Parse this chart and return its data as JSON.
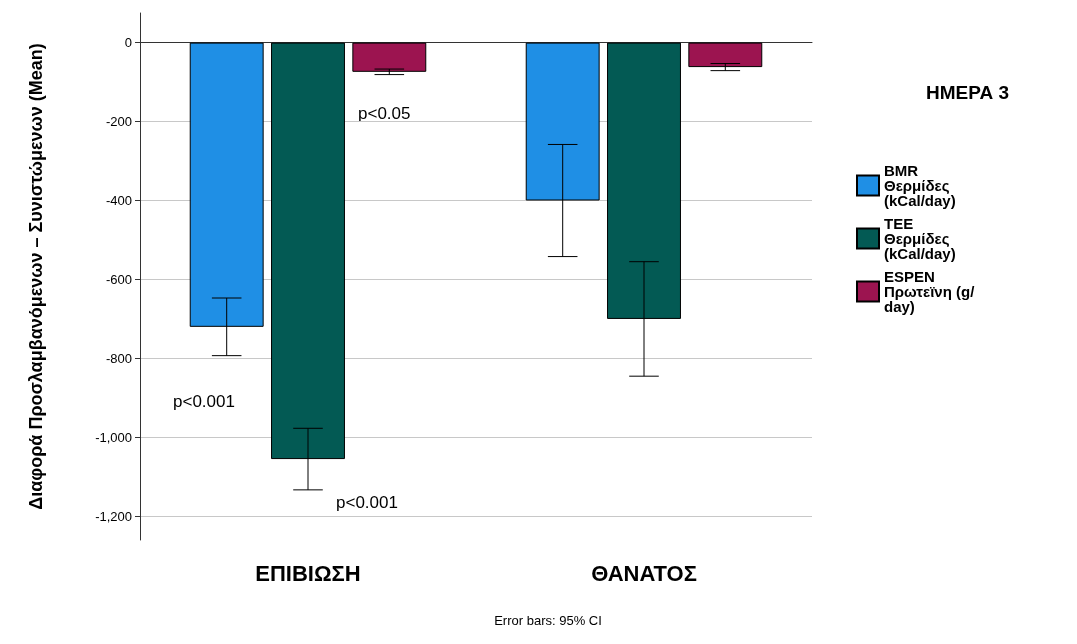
{
  "chart_data": {
    "type": "bar",
    "ylabel": "Διαφορά Προσλαμβανόμενων – Συνιστώμενων (Mean)",
    "legend_title": "ΗΜΕΡΑ 3",
    "categories": [
      "ΕΠΙΒΙΩΣΗ",
      "ΘΑΝΑΤΟΣ"
    ],
    "series": [
      {
        "name": "BMR Θερμίδες (kCal/day)",
        "color": "#1f8fe5",
        "values": [
          -720,
          -400
        ],
        "errors": [
          73,
          142
        ]
      },
      {
        "name": "TEE Θερμίδες (kCal/day)",
        "color": "#035a54",
        "values": [
          -1055,
          -700
        ],
        "errors": [
          78,
          145
        ]
      },
      {
        "name": "ESPEN Πρωτεϊνη (g/day)",
        "color": "#9c1450",
        "values": [
          -74,
          -62
        ],
        "errors": [
          7,
          9
        ]
      }
    ],
    "ylim": [
      -1260,
      75
    ],
    "yticks": [
      {
        "value": -1200,
        "label": "-1,200"
      },
      {
        "value": -1000,
        "label": "-1,000"
      },
      -800,
      -600,
      -400,
      -200,
      0
    ],
    "grid": "y",
    "legend": "right",
    "annotations": [
      "p<0.05",
      "p<0.001",
      "p<0.001",
      "Error bars: 95% CI"
    ]
  }
}
